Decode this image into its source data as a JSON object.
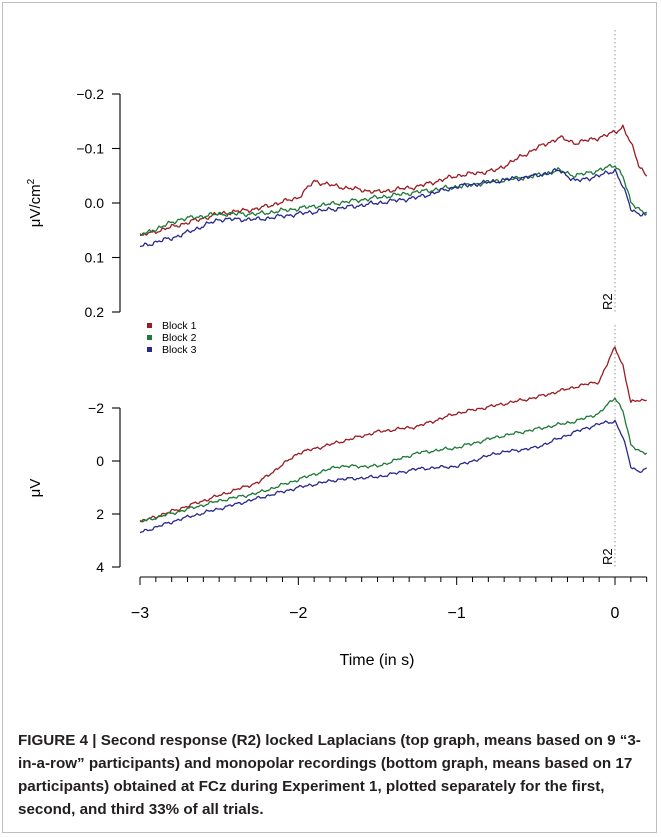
{
  "chart_data": [
    {
      "type": "line",
      "panel": "top",
      "ylabel": "μV/cm²",
      "ylabel_base": "μV/cm",
      "ylabel_sup": "2",
      "y_inverted": true,
      "ylim": [
        0.2,
        -0.2
      ],
      "yticks": [
        -0.2,
        -0.1,
        0.0,
        0.1,
        0.2
      ],
      "ytick_labels": [
        "−0.2",
        "−0.1",
        "0.0",
        "0.1",
        "0.2"
      ],
      "xlim": [
        -3,
        0.2
      ],
      "marker": {
        "x": 0,
        "label": "R2"
      },
      "series": [
        {
          "name": "Block 1",
          "color": "#9b1c22",
          "x": [
            -3.0,
            -2.75,
            -2.5,
            -2.25,
            -2.0,
            -1.9,
            -1.75,
            -1.5,
            -1.25,
            -1.0,
            -0.75,
            -0.5,
            -0.35,
            -0.25,
            -0.1,
            0.0,
            0.05,
            0.1,
            0.15,
            0.2
          ],
          "y": [
            0.06,
            0.04,
            0.02,
            0.01,
            -0.01,
            -0.04,
            -0.03,
            -0.02,
            -0.03,
            -0.05,
            -0.06,
            -0.1,
            -0.12,
            -0.11,
            -0.12,
            -0.13,
            -0.14,
            -0.11,
            -0.07,
            -0.05
          ]
        },
        {
          "name": "Block 2",
          "color": "#1e7a36",
          "x": [
            -3.0,
            -2.75,
            -2.5,
            -2.25,
            -2.0,
            -1.75,
            -1.5,
            -1.25,
            -1.0,
            -0.75,
            -0.5,
            -0.35,
            -0.25,
            -0.1,
            0.0,
            0.05,
            0.1,
            0.15,
            0.2
          ],
          "y": [
            0.06,
            0.03,
            0.02,
            0.02,
            0.01,
            0.0,
            -0.01,
            -0.02,
            -0.03,
            -0.04,
            -0.05,
            -0.06,
            -0.05,
            -0.06,
            -0.07,
            -0.05,
            0.0,
            0.01,
            0.02
          ]
        },
        {
          "name": "Block 3",
          "color": "#28288f",
          "x": [
            -3.0,
            -2.75,
            -2.5,
            -2.25,
            -2.0,
            -1.75,
            -1.5,
            -1.25,
            -1.0,
            -0.75,
            -0.5,
            -0.35,
            -0.25,
            -0.1,
            0.0,
            0.05,
            0.1,
            0.15,
            0.2
          ],
          "y": [
            0.08,
            0.06,
            0.03,
            0.03,
            0.02,
            0.01,
            0.0,
            -0.01,
            -0.03,
            -0.04,
            -0.05,
            -0.06,
            -0.04,
            -0.05,
            -0.06,
            -0.03,
            0.01,
            0.02,
            0.02
          ]
        }
      ]
    },
    {
      "type": "line",
      "panel": "bottom",
      "ylabel": "μV",
      "y_inverted": true,
      "ylim": [
        4,
        -2
      ],
      "yticks": [
        -2,
        0,
        2,
        4
      ],
      "ytick_labels": [
        "−2",
        "0",
        "2",
        "4"
      ],
      "xlim": [
        -3,
        0.2
      ],
      "xlabel": "Time (in s)",
      "xticks": [
        -3,
        -2,
        -1,
        0
      ],
      "xtick_labels": [
        "−3",
        "−2",
        "−1",
        "0"
      ],
      "marker": {
        "x": 0,
        "label": "R2"
      },
      "legend": {
        "position": "top-left",
        "labels": [
          "Block 1",
          "Block 2",
          "Block 3"
        ]
      },
      "series": [
        {
          "name": "Block 1",
          "color": "#9b1c22",
          "x": [
            -3.0,
            -2.75,
            -2.5,
            -2.25,
            -2.0,
            -1.75,
            -1.5,
            -1.25,
            -1.0,
            -0.75,
            -0.5,
            -0.25,
            -0.1,
            0.0,
            0.05,
            0.1,
            0.15,
            0.2
          ],
          "y": [
            2.3,
            1.8,
            1.3,
            0.8,
            -0.3,
            -0.7,
            -1.1,
            -1.3,
            -1.8,
            -2.1,
            -2.4,
            -2.8,
            -3.0,
            -4.3,
            -3.6,
            -2.2,
            -2.3,
            -2.3
          ]
        },
        {
          "name": "Block 2",
          "color": "#1e7a36",
          "x": [
            -3.0,
            -2.75,
            -2.5,
            -2.25,
            -2.0,
            -1.75,
            -1.5,
            -1.25,
            -1.0,
            -0.75,
            -0.5,
            -0.25,
            -0.1,
            0.0,
            0.05,
            0.1,
            0.15,
            0.2
          ],
          "y": [
            2.3,
            1.9,
            1.5,
            1.2,
            0.7,
            0.2,
            0.2,
            -0.3,
            -0.5,
            -0.9,
            -1.2,
            -1.5,
            -1.8,
            -2.4,
            -1.9,
            -0.6,
            -0.4,
            -0.3
          ]
        },
        {
          "name": "Block 3",
          "color": "#28288f",
          "x": [
            -3.0,
            -2.75,
            -2.5,
            -2.25,
            -2.0,
            -1.75,
            -1.5,
            -1.25,
            -1.0,
            -0.75,
            -0.5,
            -0.25,
            -0.1,
            0.0,
            0.05,
            0.1,
            0.15,
            0.2
          ],
          "y": [
            2.7,
            2.2,
            1.8,
            1.4,
            1.0,
            0.7,
            0.6,
            0.3,
            0.2,
            -0.3,
            -0.5,
            -1.1,
            -1.4,
            -1.5,
            -0.9,
            0.2,
            0.4,
            0.3
          ]
        }
      ]
    }
  ],
  "caption": {
    "label": "FIGURE 4 | ",
    "text": "Second response (R2) locked Laplacians (top graph, means based on 9 “3-in-a-row” participants) and monopolar recordings (bottom graph, means based on 17 participants) obtained at FCz during Experiment 1, plotted separately for the first, second, and third 33% of all trials."
  }
}
